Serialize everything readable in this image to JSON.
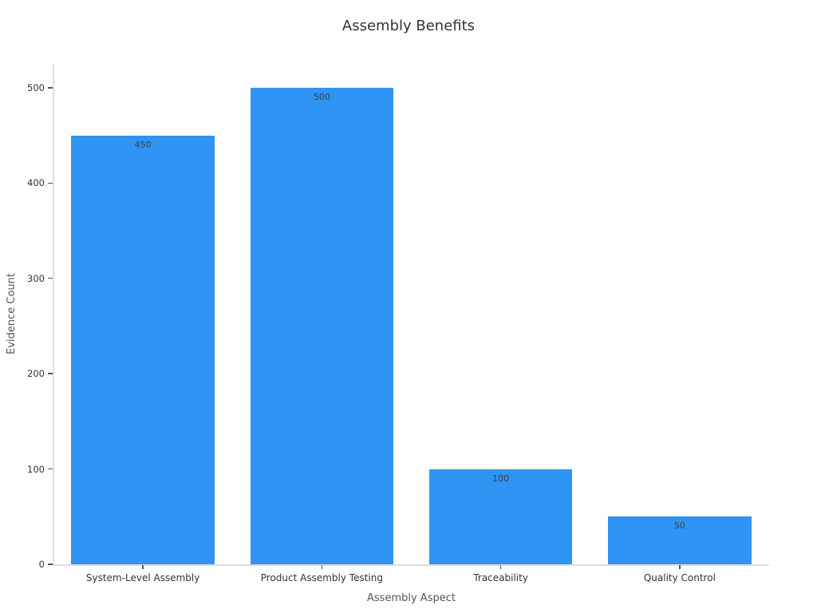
{
  "chart_data": {
    "type": "bar",
    "title": "Assembly Benefits",
    "xlabel": "Assembly Aspect",
    "ylabel": "Evidence Count",
    "categories": [
      "System-Level Assembly",
      "Product Assembly Testing",
      "Traceability",
      "Quality Control"
    ],
    "values": [
      450,
      500,
      100,
      50
    ],
    "bar_value_labels": [
      "450",
      "500",
      "100",
      "50"
    ],
    "yticks": [
      0,
      100,
      200,
      300,
      400,
      500
    ],
    "ylim": [
      0,
      525
    ],
    "bar_width_fraction": 0.8,
    "grid": false,
    "legend_position": "none",
    "colors": {
      "bar": "#2f94f4",
      "bar_value_label": "#404040",
      "axis_line": "#dddddd",
      "tick_mark": "#545454",
      "tick_label": "#333333",
      "axis_title": "#555555",
      "title": "#333333",
      "background": "#ffffff"
    }
  }
}
